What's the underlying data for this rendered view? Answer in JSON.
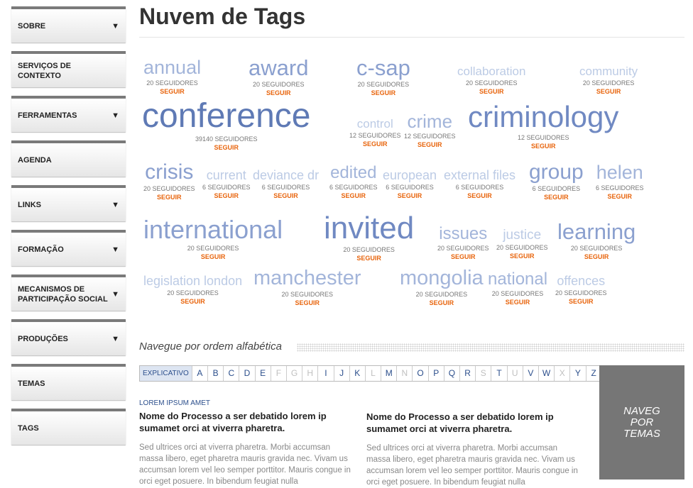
{
  "sidebar": {
    "items": [
      {
        "label": "SOBRE",
        "arrow": "▼"
      },
      {
        "label": "SERVIÇOS DE CONTEXTO",
        "arrow": ""
      },
      {
        "label": "FERRAMENTAS",
        "arrow": "▼"
      },
      {
        "label": "AGENDA",
        "arrow": ""
      },
      {
        "label": "LINKS",
        "arrow": "▼"
      },
      {
        "label": "FORMAÇÃO",
        "arrow": "▼"
      },
      {
        "label": "MECANISMOS DE PARTICIPAÇÃO SOCIAL",
        "arrow": "▼"
      },
      {
        "label": "PRODUÇÕES",
        "arrow": "▼"
      },
      {
        "label": "TEMAS",
        "arrow": ""
      },
      {
        "label": "TAGS",
        "arrow": ""
      }
    ]
  },
  "page": {
    "title": "Nuvem de Tags"
  },
  "follow_label": "SEGUIR",
  "tags": [
    {
      "name": "annual",
      "count": "20 SEGUIDORES"
    },
    {
      "name": "award",
      "count": "20 SEGUIDORES"
    },
    {
      "name": "c-sap",
      "count": "20 SEGUIDORES"
    },
    {
      "name": "collaboration",
      "count": "20 SEGUIDORES"
    },
    {
      "name": "community",
      "count": "20 SEGUIDORES"
    },
    {
      "name": "conference",
      "count": "39140 SEGUIDORES"
    },
    {
      "name": "control",
      "count": "12 SEGUIDORES"
    },
    {
      "name": "crime",
      "count": "12 SEGUIDORES"
    },
    {
      "name": "criminology",
      "count": "12 SEGUIDORES"
    },
    {
      "name": "crisis",
      "count": "20 SEGUIDORES"
    },
    {
      "name": "current",
      "count": "6 SEGUIDORES"
    },
    {
      "name": "deviance dr",
      "count": "6 SEGUIDORES"
    },
    {
      "name": "edited",
      "count": "6 SEGUIDORES"
    },
    {
      "name": "european",
      "count": "6 SEGUIDORES"
    },
    {
      "name": "external files",
      "count": "6 SEGUIDORES"
    },
    {
      "name": "group",
      "count": "6 SEGUIDORES"
    },
    {
      "name": "helen",
      "count": "6 SEGUIDORES"
    },
    {
      "name": "international",
      "count": "20 SEGUIDORES"
    },
    {
      "name": "invited",
      "count": "20 SEGUIDORES"
    },
    {
      "name": "issues",
      "count": "20 SEGUIDORES"
    },
    {
      "name": "justice",
      "count": "20 SEGUIDORES"
    },
    {
      "name": "learning",
      "count": "20 SEGUIDORES"
    },
    {
      "name": "legislation london",
      "count": "20 SEGUIDORES"
    },
    {
      "name": "manchester",
      "count": "20 SEGUIDORES"
    },
    {
      "name": "mongolia",
      "count": "20 SEGUIDORES"
    },
    {
      "name": "national",
      "count": "20 SEGUIDORES"
    },
    {
      "name": "offences",
      "count": "20 SEGUIDORES"
    }
  ],
  "alphabet": {
    "title": "Navegue por ordem alfabética",
    "first": "EXPLICATIVO",
    "letters": [
      "A",
      "B",
      "C",
      "D",
      "E",
      "F",
      "G",
      "H",
      "I",
      "J",
      "K",
      "L",
      "M",
      "N",
      "O",
      "P",
      "Q",
      "R",
      "S",
      "T",
      "U",
      "V",
      "W",
      "X",
      "Y",
      "Z"
    ],
    "disabled": [
      "F",
      "G",
      "H",
      "L",
      "N",
      "S",
      "U",
      "X"
    ]
  },
  "nav_temas": {
    "line1": "NAVEG",
    "line2": "POR",
    "line3": "TEMAS"
  },
  "articles": [
    {
      "category": "LOREM IPSUM AMET",
      "title": "Nome do Processo a ser debatido lorem ip sumamet orci at viverra pharetra.",
      "body": "Sed ultrices orci at viverra pharetra. Morbi accumsan massa libero, eget pharetra mauris gravida nec. Vivam us accumsan lorem vel leo semper porttitor. Mauris congue in orci eget posuere. In bibendum feugiat nulla"
    },
    {
      "category": "",
      "title": "Nome do Processo a ser debatido lorem ip sumamet orci at viverra pharetra.",
      "body": "Sed ultrices orci at viverra pharetra. Morbi accumsan massa libero, eget pharetra mauris gravida nec. Vivam us accumsan lorem vel leo semper porttitor. Mauris congue in orci eget posuere. In bibendum feugiat nulla"
    }
  ],
  "colors": {
    "accent_orange": "#e8640c",
    "tag_dark": "#5f7ab5",
    "tag_light": "#b9c8e3",
    "link_blue": "#2c4f8c"
  }
}
